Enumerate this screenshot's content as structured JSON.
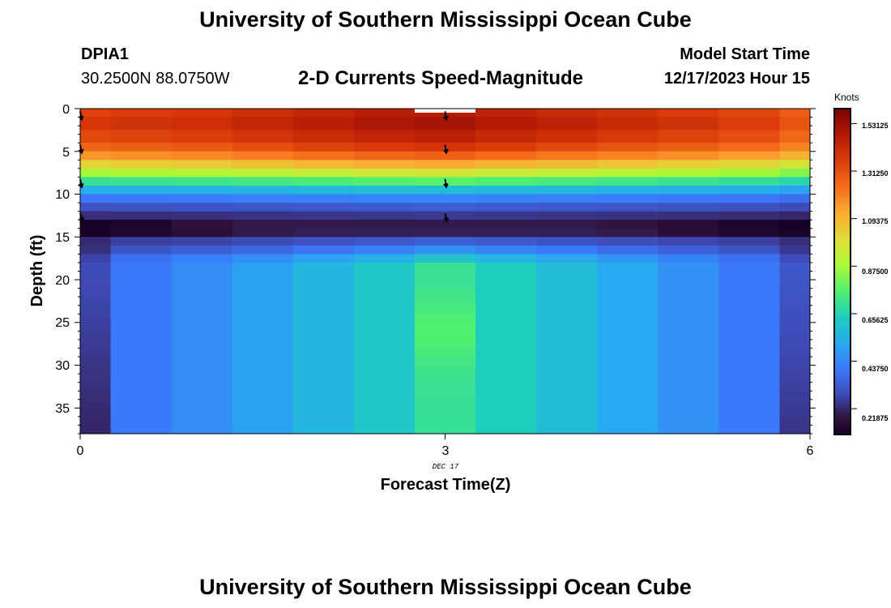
{
  "header": {
    "title": "University of Southern Mississippi Ocean Cube",
    "station_id": "DPIA1",
    "station_coords": "30.2500N  88.0750W",
    "subtitle": "2-D Currents Speed-Magnitude",
    "model_start_label": "Model Start Time",
    "model_start_value": "12/17/2023 Hour 15"
  },
  "footer": {
    "title_repeat": "University of Southern Mississippi Ocean Cube"
  },
  "colors": {
    "frame": "#000000",
    "tick": "#000000",
    "arrow": "#000000",
    "surface_marker": "#ffffff"
  },
  "chart_data": {
    "type": "heatmap",
    "title": "2-D Currents Speed-Magnitude",
    "xlabel": "Forecast Time(Z)",
    "ylabel": "Depth (ft)",
    "x_ticks": [
      "0",
      "3",
      "6"
    ],
    "x_sublabel": "DEC 17",
    "y_ticks": [
      "0",
      "5",
      "10",
      "15",
      "20",
      "25",
      "30",
      "35"
    ],
    "xlim": [
      0,
      6
    ],
    "ylim": [
      38,
      0
    ],
    "colorbar": {
      "label": "Knots",
      "min": 0.1,
      "max": 1.6,
      "tick_labels": [
        "1.53125",
        "1.31250",
        "1.09375",
        "0.87500",
        "0.65625",
        "0.43750",
        "0.21875"
      ],
      "tick_values": [
        1.53125,
        1.3125,
        1.09375,
        0.875,
        0.65625,
        0.4375,
        0.21875
      ]
    },
    "columns": [
      {
        "x0": 0.0,
        "x1": 0.25,
        "scale": 0.95
      },
      {
        "x0": 0.25,
        "x1": 0.75,
        "scale": 0.96
      },
      {
        "x0": 0.75,
        "x1": 1.25,
        "scale": 0.97
      },
      {
        "x0": 1.25,
        "x1": 1.75,
        "scale": 0.99
      },
      {
        "x0": 1.75,
        "x1": 2.25,
        "scale": 1.01
      },
      {
        "x0": 2.25,
        "x1": 2.75,
        "scale": 1.03
      },
      {
        "x0": 2.75,
        "x1": 3.25,
        "scale": 1.04
      },
      {
        "x0": 3.25,
        "x1": 3.75,
        "scale": 1.02
      },
      {
        "x0": 3.75,
        "x1": 4.25,
        "scale": 1.0
      },
      {
        "x0": 4.25,
        "x1": 4.75,
        "scale": 0.98
      },
      {
        "x0": 4.75,
        "x1": 5.25,
        "scale": 0.96
      },
      {
        "x0": 5.25,
        "x1": 5.75,
        "scale": 0.94
      },
      {
        "x0": 5.75,
        "x1": 6.0,
        "scale": 0.9
      }
    ],
    "upper_layers": [
      {
        "d0": 0,
        "d1": 1,
        "v": 1.42
      },
      {
        "d0": 1,
        "d1": 2.5,
        "v": 1.45
      },
      {
        "d0": 2.5,
        "d1": 4,
        "v": 1.4
      },
      {
        "d0": 4,
        "d1": 5,
        "v": 1.33
      },
      {
        "d0": 5,
        "d1": 6,
        "v": 1.22
      },
      {
        "d0": 6,
        "d1": 7,
        "v": 1.08
      },
      {
        "d0": 7,
        "d1": 8,
        "v": 0.92
      },
      {
        "d0": 8,
        "d1": 9,
        "v": 0.74
      },
      {
        "d0": 9,
        "d1": 10,
        "v": 0.56
      },
      {
        "d0": 10,
        "d1": 11,
        "v": 0.42
      },
      {
        "d0": 11,
        "d1": 12,
        "v": 0.32
      },
      {
        "d0": 12,
        "d1": 13,
        "v": 0.24
      },
      {
        "d0": 13,
        "d1": 14,
        "v": 0.17
      }
    ],
    "upper_column_values": {
      "13_14": [
        0.02,
        0.12,
        0.17,
        0.19,
        0.19,
        0.19,
        0.19,
        0.19,
        0.19,
        0.18,
        0.15,
        0.12,
        0.1
      ],
      "14_15": [
        0.0,
        0.13,
        0.16,
        0.19,
        0.2,
        0.2,
        0.2,
        0.2,
        0.2,
        0.19,
        0.16,
        0.13,
        0.11
      ]
    },
    "mid_layers": [
      {
        "d0": 15,
        "d1": 16,
        "v": 0.26
      },
      {
        "d0": 16,
        "d1": 17,
        "v": 0.31
      },
      {
        "d0": 17,
        "d1": 18,
        "v": 0.38
      }
    ],
    "lower_column_values": [
      0.25,
      0.4,
      0.45,
      0.5,
      0.56,
      0.62,
      0.7,
      0.64,
      0.58,
      0.52,
      0.46,
      0.4,
      0.28
    ],
    "lower_depth_gradient": 0.004,
    "vector_arrows": [
      {
        "x": 0,
        "depth": 0.8,
        "dx": 0.2,
        "dy": 1
      },
      {
        "x": 0,
        "depth": 4.7,
        "dx": 0.2,
        "dy": 1
      },
      {
        "x": 0,
        "depth": 8.7,
        "dx": 0.2,
        "dy": 1
      },
      {
        "x": 0,
        "depth": 12.7,
        "dx": 0.3,
        "dy": 1
      },
      {
        "x": 3,
        "depth": 0.8,
        "dx": 0.15,
        "dy": 1
      },
      {
        "x": 3,
        "depth": 4.7,
        "dx": 0.15,
        "dy": 1
      },
      {
        "x": 3,
        "depth": 8.7,
        "dx": 0.15,
        "dy": 1
      },
      {
        "x": 3,
        "depth": 12.7,
        "dx": 0.2,
        "dy": 1
      }
    ]
  }
}
